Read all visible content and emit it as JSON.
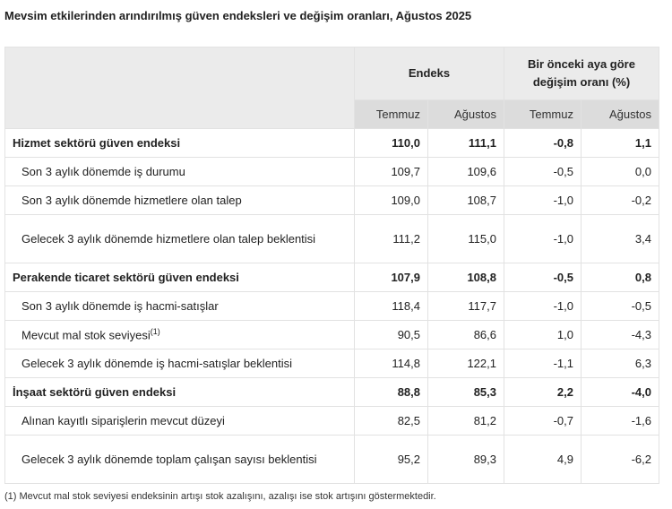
{
  "title": "Mevsim etkilerinden arındırılmış güven endeksleri ve değişim oranları, Ağustos 2025",
  "header": {
    "endeks": "Endeks",
    "change": "Bir önceki aya göre değişim oranı (%)",
    "cols": [
      "Temmuz",
      "Ağustos",
      "Temmuz",
      "Ağustos"
    ]
  },
  "rows": [
    {
      "label": "Hizmet sektörü güven endeksi",
      "sup": "",
      "values": [
        "110,0",
        "111,1",
        "-0,8",
        "1,1"
      ]
    },
    {
      "label": "Son 3 aylık dönemde iş durumu",
      "sup": "",
      "values": [
        "109,7",
        "109,6",
        "-0,5",
        "0,0"
      ]
    },
    {
      "label": "Son 3 aylık dönemde hizmetlere olan talep",
      "sup": "",
      "values": [
        "109,0",
        "108,7",
        "-1,0",
        "-0,2"
      ]
    },
    {
      "label": "Gelecek 3 aylık dönemde hizmetlere olan talep beklentisi",
      "sup": "",
      "values": [
        "111,2",
        "115,0",
        "-1,0",
        "3,4"
      ]
    },
    {
      "label": "Perakende ticaret sektörü güven endeksi",
      "sup": "",
      "values": [
        "107,9",
        "108,8",
        "-0,5",
        "0,8"
      ]
    },
    {
      "label": "Son 3 aylık dönemde iş hacmi-satışlar",
      "sup": "",
      "values": [
        "118,4",
        "117,7",
        "-1,0",
        "-0,5"
      ]
    },
    {
      "label": "Mevcut mal stok seviyesi",
      "sup": "(1)",
      "values": [
        "90,5",
        "86,6",
        "1,0",
        "-4,3"
      ]
    },
    {
      "label": "Gelecek 3 aylık dönemde iş hacmi-satışlar beklentisi",
      "sup": "",
      "values": [
        "114,8",
        "122,1",
        "-1,1",
        "6,3"
      ]
    },
    {
      "label": "İnşaat sektörü güven endeksi",
      "sup": "",
      "values": [
        "88,8",
        "85,3",
        "2,2",
        "-4,0"
      ]
    },
    {
      "label": "Alınan kayıtlı siparişlerin mevcut düzeyi",
      "sup": "",
      "values": [
        "82,5",
        "81,2",
        "-0,7",
        "-1,6"
      ]
    },
    {
      "label": "Gelecek 3 aylık dönemde toplam çalışan sayısı beklentisi",
      "sup": "",
      "values": [
        "95,2",
        "89,3",
        "4,9",
        "-6,2"
      ]
    }
  ],
  "footnote": "(1) Mevcut mal stok seviyesi endeksinin artışı stok azalışını, azalışı ise stok artışını göstermektedir."
}
